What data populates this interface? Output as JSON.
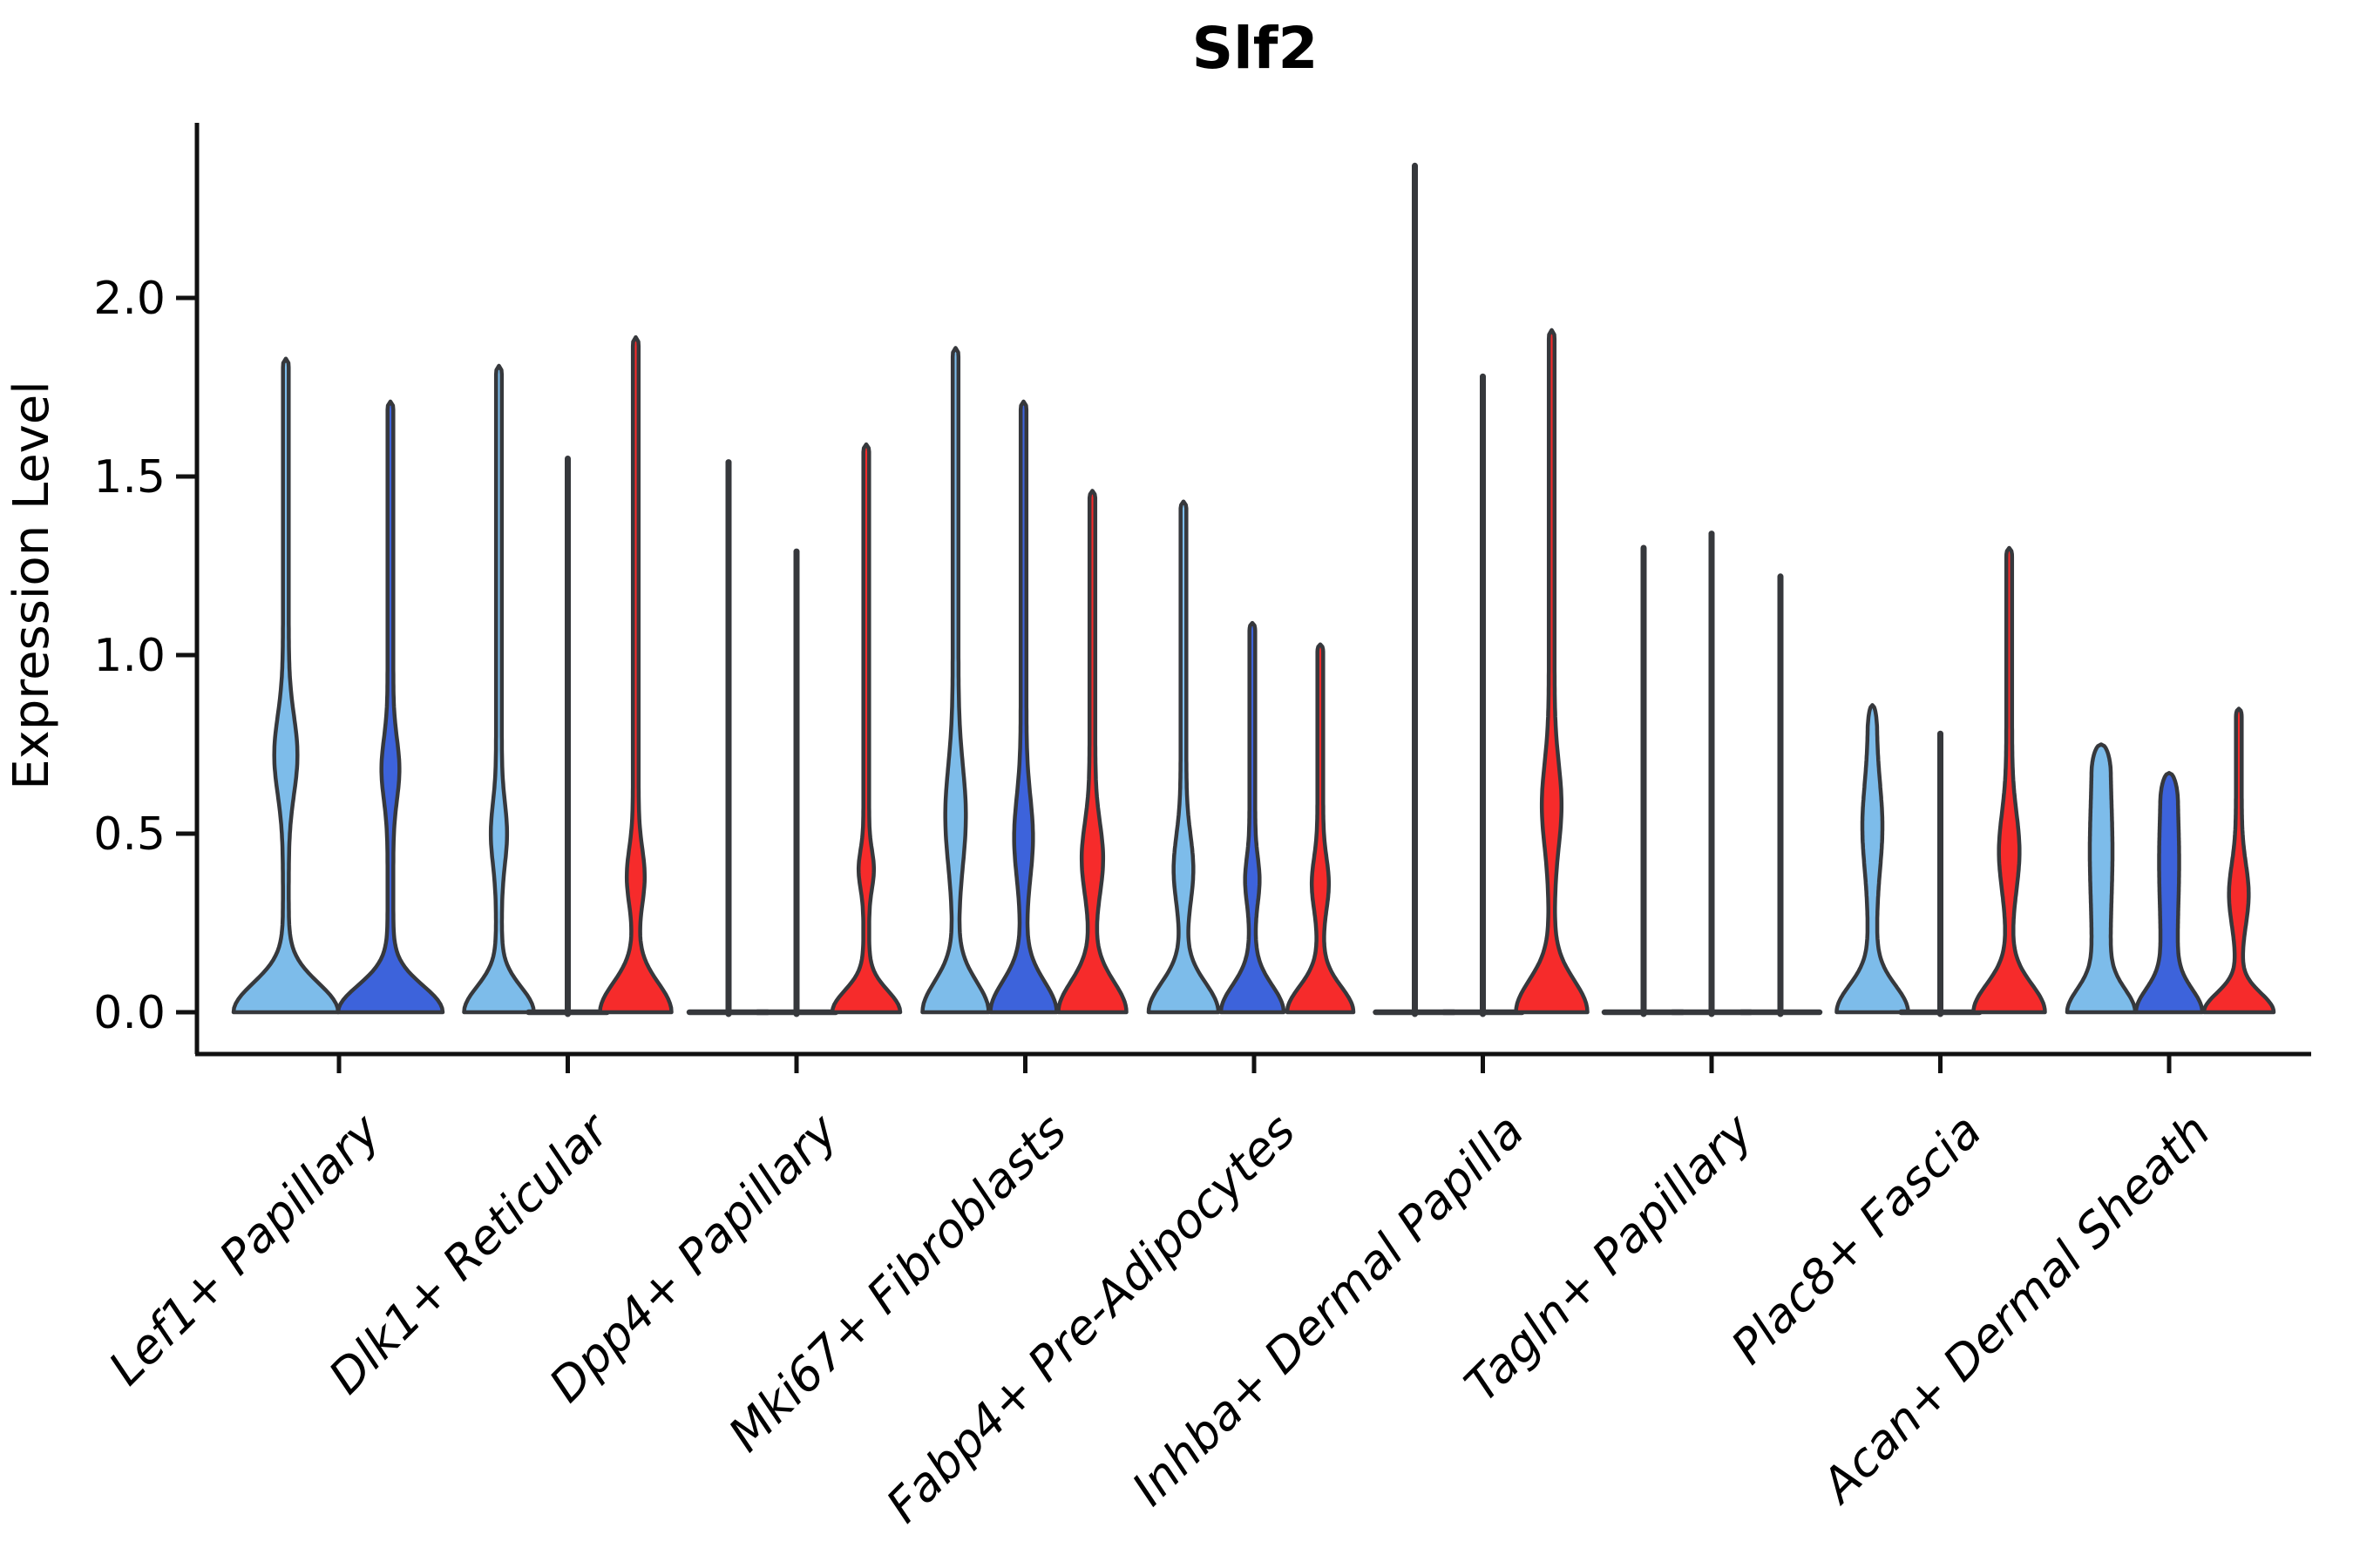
{
  "chart_data": {
    "type": "violin",
    "title": "Slf2",
    "ylabel": "Expression Level",
    "xlabel": "",
    "grid": false,
    "legend": null,
    "ylim": [
      -0.12,
      2.5
    ],
    "ytick_values": [
      0.0,
      0.5,
      1.0,
      1.5,
      2.0
    ],
    "ytick_labels": [
      "0.0",
      "0.5",
      "1.0",
      "1.5",
      "2.0"
    ],
    "categories": [
      "Lef1+ Papillary",
      "Dlk1+ Reticular",
      "Dpp4+ Papillary",
      "Mki67+ Fibroblasts",
      "Fabp4+ Pre-Adipocytes",
      "Inhba+ Dermal Papilla",
      "Tagln+ Papillary",
      "Plac8+ Fascia",
      "Acan+ Dermal Sheath"
    ],
    "palette": {
      "light_blue": "#7DBCEA",
      "dark_blue": "#3D63DB",
      "red": "#F62B2B",
      "edge": "#36383C",
      "spine": "#111111",
      "text": "#000000",
      "background": "#FFFFFF"
    },
    "groups": [
      {
        "label": "Lef1+ Papillary",
        "violins": [
          {
            "color": "light_blue",
            "shape": "tailed",
            "offset": -61,
            "max": 1.83,
            "stem_hw": 3.3,
            "base_hw": 60,
            "flare": 0.115,
            "bulge": {
              "center": 0.72,
              "spread": 0.155,
              "half_width": 10.0
            }
          },
          {
            "color": "dark_blue",
            "shape": "tailed",
            "offset": 59,
            "max": 1.71,
            "stem_hw": 3.3,
            "base_hw": 60,
            "flare": 0.105,
            "bulge": {
              "center": 0.68,
              "spread": 0.12,
              "half_width": 7.0
            }
          }
        ]
      },
      {
        "label": "Dlk1+ Reticular",
        "violins": [
          {
            "color": "light_blue",
            "shape": "tailed",
            "offset": -79,
            "max": 1.81,
            "stem_hw": 3.3,
            "base_hw": 40,
            "flare": 0.1,
            "bulge": {
              "center": 0.5,
              "spread": 0.12,
              "half_width": 6.0
            }
          },
          {
            "color": "dark_blue",
            "shape": "line",
            "offset": 0,
            "max": 1.55,
            "baseline_hw": 45
          },
          {
            "color": "red",
            "shape": "tailed",
            "offset": 78,
            "max": 1.89,
            "stem_hw": 3.3,
            "base_hw": 41,
            "flare": 0.115,
            "bulge": {
              "center": 0.38,
              "spread": 0.11,
              "half_width": 7.0
            }
          }
        ]
      },
      {
        "label": "Dpp4+ Papillary",
        "violins": [
          {
            "color": "light_blue",
            "shape": "line",
            "offset": -78,
            "max": 1.54,
            "baseline_hw": 45
          },
          {
            "color": "dark_blue",
            "shape": "line",
            "offset": 0,
            "max": 1.29,
            "baseline_hw": 45
          },
          {
            "color": "red",
            "shape": "tailed",
            "offset": 80,
            "max": 1.59,
            "stem_hw": 3.3,
            "base_hw": 39,
            "flare": 0.085,
            "bulge": {
              "center": 0.4,
              "spread": 0.075,
              "half_width": 5.5
            }
          }
        ]
      },
      {
        "label": "Mki67+ Fibroblasts",
        "violins": [
          {
            "color": "light_blue",
            "shape": "tailed",
            "offset": -80,
            "max": 1.86,
            "stem_hw": 3.3,
            "base_hw": 38,
            "flare": 0.12,
            "bulge": {
              "center": 0.55,
              "spread": 0.195,
              "half_width": 8.5
            }
          },
          {
            "color": "dark_blue",
            "shape": "tailed",
            "offset": -2,
            "max": 1.71,
            "stem_hw": 3.3,
            "base_hw": 38,
            "flare": 0.12,
            "bulge": {
              "center": 0.49,
              "spread": 0.16,
              "half_width": 7.5
            }
          },
          {
            "color": "red",
            "shape": "tailed",
            "offset": 77,
            "max": 1.46,
            "stem_hw": 3.3,
            "base_hw": 39,
            "flare": 0.12,
            "bulge": {
              "center": 0.43,
              "spread": 0.14,
              "half_width": 9.0
            }
          }
        ]
      },
      {
        "label": "Fabp4+ Pre-Adipocytes",
        "violins": [
          {
            "color": "light_blue",
            "shape": "tailed",
            "offset": -81,
            "max": 1.43,
            "stem_hw": 3.3,
            "base_hw": 40,
            "flare": 0.115,
            "bulge": {
              "center": 0.4,
              "spread": 0.135,
              "half_width": 8.0
            }
          },
          {
            "color": "dark_blue",
            "shape": "tailed",
            "offset": -2,
            "max": 1.09,
            "stem_hw": 3.3,
            "base_hw": 36,
            "flare": 0.105,
            "bulge": {
              "center": 0.37,
              "spread": 0.09,
              "half_width": 5.0
            }
          },
          {
            "color": "red",
            "shape": "tailed",
            "offset": 76,
            "max": 1.03,
            "stem_hw": 3.3,
            "base_hw": 38,
            "flare": 0.1,
            "bulge": {
              "center": 0.36,
              "spread": 0.1,
              "half_width": 6.5
            }
          }
        ]
      },
      {
        "label": "Inhba+ Dermal Papilla",
        "violins": [
          {
            "color": "light_blue",
            "shape": "line",
            "offset": -78,
            "max": 2.37,
            "baseline_hw": 45
          },
          {
            "color": "dark_blue",
            "shape": "line",
            "offset": 0,
            "max": 1.78,
            "baseline_hw": 45
          },
          {
            "color": "red",
            "shape": "tailed",
            "offset": 79,
            "max": 1.91,
            "stem_hw": 3.3,
            "base_hw": 41,
            "flare": 0.125,
            "bulge": {
              "center": 0.58,
              "spread": 0.165,
              "half_width": 8.0
            }
          }
        ]
      },
      {
        "label": "Tagln+ Papillary",
        "violins": [
          {
            "color": "light_blue",
            "shape": "line",
            "offset": -78,
            "max": 1.3,
            "baseline_hw": 45
          },
          {
            "color": "dark_blue",
            "shape": "line",
            "offset": 0,
            "max": 1.34,
            "baseline_hw": 45
          },
          {
            "color": "red",
            "shape": "line",
            "offset": 79,
            "max": 1.22,
            "baseline_hw": 45
          }
        ]
      },
      {
        "label": "Plac8+ Fascia",
        "violins": [
          {
            "color": "light_blue",
            "shape": "capped",
            "offset": -78,
            "max": 0.86,
            "stem_hw": 5.0,
            "base_hw": 41,
            "flare": 0.105,
            "cap": 0.07,
            "bulge": {
              "center": 0.52,
              "spread": 0.165,
              "half_width": 6.5
            }
          },
          {
            "color": "dark_blue",
            "shape": "line",
            "offset": 0,
            "max": 0.78,
            "baseline_hw": 45
          },
          {
            "color": "red",
            "shape": "tailed",
            "offset": 79,
            "max": 1.3,
            "stem_hw": 3.3,
            "base_hw": 41,
            "flare": 0.11,
            "bulge": {
              "center": 0.45,
              "spread": 0.15,
              "half_width": 8.5
            }
          }
        ]
      },
      {
        "label": "Acan+ Dermal Sheath",
        "violins": [
          {
            "color": "light_blue",
            "shape": "capped",
            "offset": -78,
            "max": 0.75,
            "stem_hw": 10.5,
            "base_hw": 39,
            "flare": 0.09,
            "cap": 0.08,
            "bulge": {
              "center": 0.45,
              "spread": 0.18,
              "half_width": 2.5
            }
          },
          {
            "color": "dark_blue",
            "shape": "capped",
            "offset": 0,
            "max": 0.67,
            "stem_hw": 9.5,
            "base_hw": 38,
            "flare": 0.09,
            "cap": 0.08,
            "bulge": {
              "center": 0.42,
              "spread": 0.16,
              "half_width": 2.0
            }
          },
          {
            "color": "red",
            "shape": "tailed",
            "offset": 80,
            "max": 0.85,
            "stem_hw": 3.3,
            "base_hw": 40,
            "flare": 0.075,
            "bulge": {
              "center": 0.33,
              "spread": 0.12,
              "half_width": 8.0
            }
          }
        ]
      }
    ]
  }
}
